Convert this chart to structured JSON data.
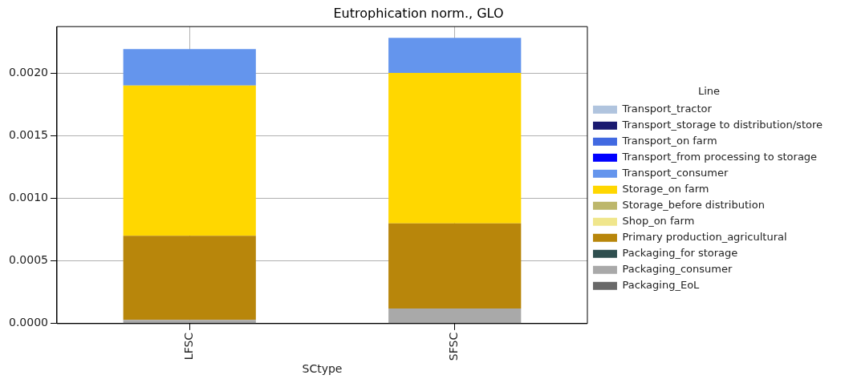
{
  "chart_data": {
    "type": "bar",
    "title": "Eutrophication norm., GLO",
    "xlabel": "SCtype",
    "legend_title": "Line",
    "categories": [
      "LFSC",
      "SFSC"
    ],
    "stacked": true,
    "grid": true,
    "legend": "right",
    "ylim": [
      0,
      0.00237
    ],
    "yticks": [
      {
        "value": 0,
        "label": "0.0000"
      },
      {
        "value": 0.0005,
        "label": "0.0005"
      },
      {
        "value": 0.001,
        "label": "0.0010"
      },
      {
        "value": 0.0015,
        "label": "0.0015"
      },
      {
        "value": 0.002,
        "label": "0.0020"
      }
    ],
    "series": [
      {
        "name": "Packaging_EoL",
        "color": "#696969",
        "values": [
          0,
          0
        ]
      },
      {
        "name": "Packaging_consumer",
        "color": "#a9a9a9",
        "values": [
          3e-05,
          0.00012
        ]
      },
      {
        "name": "Packaging_for storage",
        "color": "#2f4f4f",
        "values": [
          0,
          0
        ]
      },
      {
        "name": "Primary production_agricultural",
        "color": "#b8860b",
        "values": [
          0.00067,
          0.00068
        ]
      },
      {
        "name": "Shop_on farm",
        "color": "#f0e68c",
        "values": [
          0,
          0
        ]
      },
      {
        "name": "Storage_before distribution",
        "color": "#bdb76b",
        "values": [
          0,
          0
        ]
      },
      {
        "name": "Storage_on farm",
        "color": "#ffd700",
        "values": [
          0.0012,
          0.0012
        ]
      },
      {
        "name": "Transport_consumer",
        "color": "#6495ed",
        "values": [
          0.00029,
          0.00028
        ]
      },
      {
        "name": "Transport_from processing to storage",
        "color": "#0000ff",
        "values": [
          0,
          0
        ]
      },
      {
        "name": "Transport_on farm",
        "color": "#4169e1",
        "values": [
          0,
          0
        ]
      },
      {
        "name": "Transport_storage to distribution/store",
        "color": "#191970",
        "values": [
          0,
          0
        ]
      },
      {
        "name": "Transport_tractor",
        "color": "#b0c4de",
        "values": [
          0,
          0
        ]
      }
    ]
  }
}
